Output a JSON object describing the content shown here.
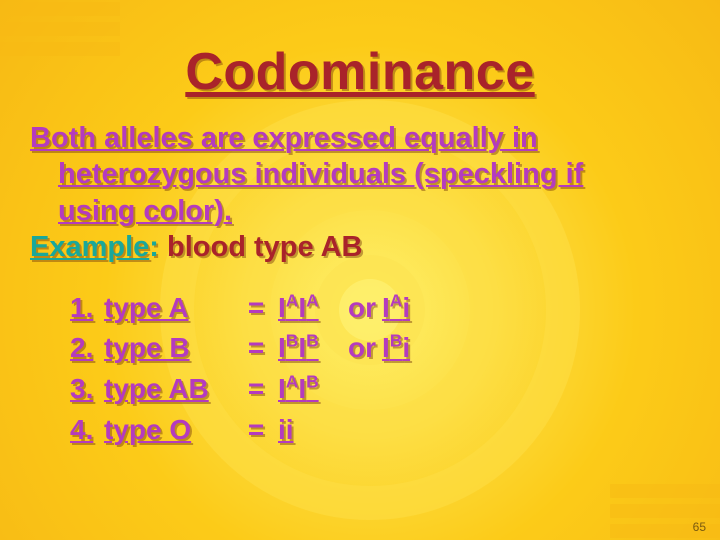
{
  "colors": {
    "title": "#a9232a",
    "definition": "#b43bbf",
    "example_label": "#1aa89a",
    "example_text": "#a9232a",
    "list_text": "#b43bbf",
    "allele_or": "#b43bbf",
    "pagenum": "#7a5a10"
  },
  "title": "Codominance",
  "definition_line1": "Both alleles are expressed equally in",
  "definition_line2": "heterozygous individuals (speckling if",
  "definition_line3": "using color).",
  "example": {
    "label": "Example",
    "colon": ":",
    "text": "  blood type AB"
  },
  "rows": [
    {
      "num": "1.",
      "type": "type A",
      "eq": "=",
      "g1": "I<sup>A</sup>I<sup>A</sup>",
      "or": "or",
      "g2": "I<sup>A</sup>i"
    },
    {
      "num": "2.",
      "type": "type B",
      "eq": "=",
      "g1": "I<sup>B</sup>I<sup>B</sup>",
      "or": "or",
      "g2": "I<sup>B</sup>i"
    },
    {
      "num": "3.",
      "type": "type AB",
      "eq": "=",
      "g1": "I<sup>A</sup>I<sup>B</sup>",
      "or": "",
      "g2": ""
    },
    {
      "num": "4.",
      "type": "type O",
      "eq": "=",
      "g1": "ii",
      "or": "",
      "g2": ""
    }
  ],
  "pagenum": "65"
}
